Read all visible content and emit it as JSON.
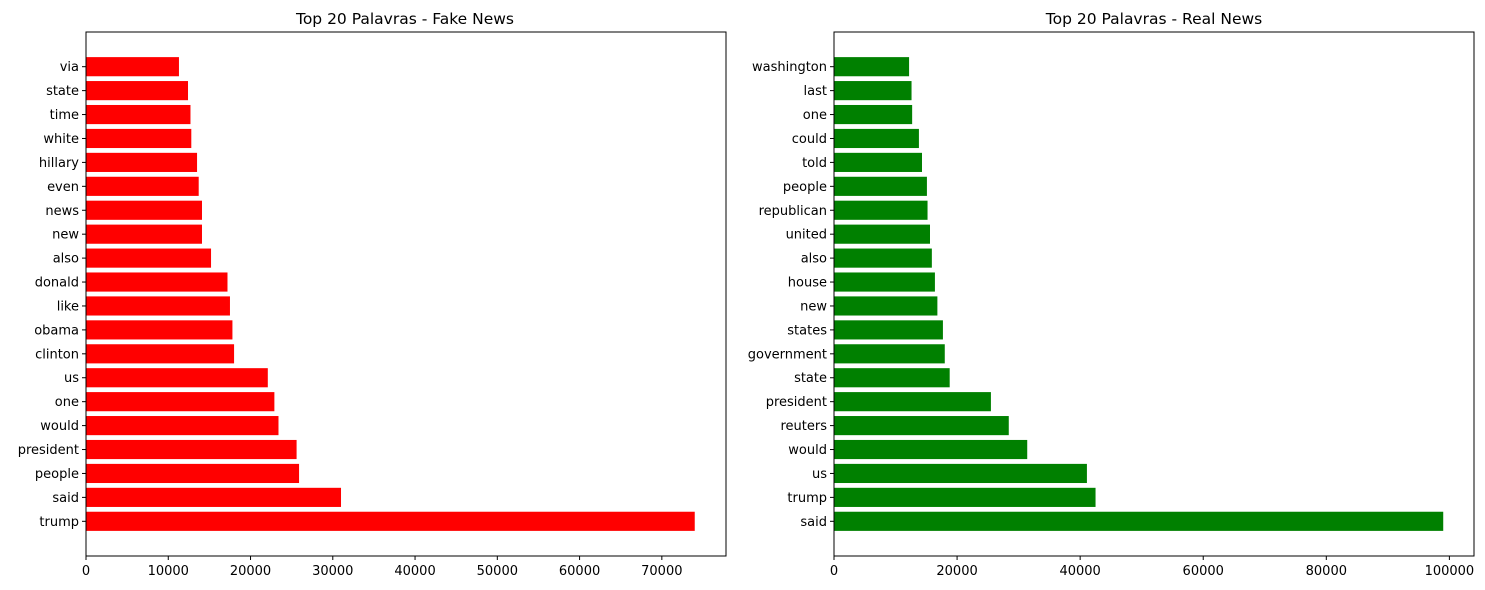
{
  "chart_data": [
    {
      "type": "bar",
      "orientation": "horizontal",
      "title": "Top 20 Palavras - Fake News",
      "xlabel": "",
      "ylabel": "",
      "xlim": [
        0,
        77800
      ],
      "xticks": [
        0,
        10000,
        20000,
        30000,
        40000,
        50000,
        60000,
        70000
      ],
      "grid": false,
      "color": "#ff0000",
      "categories": [
        "trump",
        "said",
        "people",
        "president",
        "would",
        "one",
        "us",
        "clinton",
        "obama",
        "like",
        "donald",
        "also",
        "new",
        "news",
        "even",
        "hillary",
        "white",
        "time",
        "state",
        "via"
      ],
      "values": [
        74000,
        31000,
        25900,
        25600,
        23400,
        22900,
        22100,
        18000,
        17800,
        17500,
        17200,
        15200,
        14100,
        14100,
        13700,
        13500,
        12800,
        12700,
        12400,
        11300
      ]
    },
    {
      "type": "bar",
      "orientation": "horizontal",
      "title": "Top 20 Palavras - Real News",
      "xlabel": "",
      "ylabel": "",
      "xlim": [
        0,
        104000
      ],
      "xticks": [
        0,
        20000,
        40000,
        60000,
        80000,
        100000
      ],
      "grid": false,
      "color": "#008000",
      "categories": [
        "said",
        "trump",
        "us",
        "would",
        "reuters",
        "president",
        "state",
        "government",
        "states",
        "new",
        "house",
        "also",
        "united",
        "republican",
        "people",
        "told",
        "could",
        "one",
        "last",
        "washington"
      ],
      "values": [
        99000,
        42500,
        41100,
        31400,
        28400,
        25500,
        18800,
        18000,
        17700,
        16800,
        16400,
        15900,
        15600,
        15200,
        15100,
        14300,
        13800,
        12700,
        12600,
        12200
      ]
    }
  ]
}
